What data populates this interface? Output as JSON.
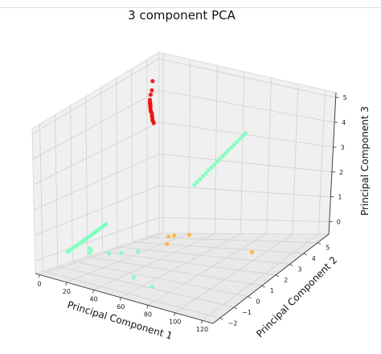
{
  "chart_data": {
    "type": "scatter",
    "projection": "3d",
    "title": "3 component PCA",
    "xlabel": "Principal Component 1",
    "ylabel": "Principal Component 2",
    "zlabel": "Principal Component 3",
    "xlim": [
      -3,
      128
    ],
    "ylim": [
      -2.5,
      5.8
    ],
    "zlim": [
      -0.5,
      5.2
    ],
    "xticks": [
      "0",
      "20",
      "40",
      "60",
      "80",
      "100",
      "120"
    ],
    "yticks": [
      "−2",
      "−1",
      "0",
      "1",
      "2",
      "3",
      "4",
      "5"
    ],
    "zticks": [
      "0",
      "1",
      "2",
      "3",
      "4",
      "5"
    ],
    "grid": true,
    "legend": "none",
    "series": [
      {
        "color": "#ee1111",
        "points": [
          [
            2,
            5.0,
            3.2
          ],
          [
            2.4,
            4.9,
            3.3
          ],
          [
            2.8,
            4.85,
            3.35
          ],
          [
            3.2,
            4.8,
            3.45
          ],
          [
            3.6,
            4.75,
            3.5
          ],
          [
            4,
            4.7,
            3.6
          ],
          [
            4.4,
            4.6,
            3.7
          ],
          [
            4.8,
            4.55,
            3.75
          ],
          [
            5.2,
            4.5,
            3.85
          ],
          [
            8,
            4.25,
            4.0
          ],
          [
            8.5,
            4.2,
            4.05
          ],
          [
            9,
            4.15,
            4.1
          ],
          [
            9.5,
            4.1,
            4.15
          ],
          [
            10,
            4.05,
            4.2
          ],
          [
            10.5,
            4.0,
            4.3
          ],
          [
            20,
            3.2,
            4.8
          ],
          [
            22,
            3.1,
            5.0
          ],
          [
            27,
            2.7,
            5.5
          ]
        ]
      },
      {
        "color": "#7fffbf",
        "points": [
          [
            0,
            -0.6,
            0.0
          ],
          [
            0.5,
            -0.5,
            0.04
          ],
          [
            1,
            -0.4,
            0.08
          ],
          [
            1.5,
            -0.3,
            0.12
          ],
          [
            2,
            -0.2,
            0.16
          ],
          [
            2.5,
            -0.1,
            0.2
          ],
          [
            3,
            0.0,
            0.24
          ],
          [
            3.5,
            0.1,
            0.28
          ],
          [
            4,
            0.2,
            0.32
          ],
          [
            4.5,
            0.3,
            0.36
          ],
          [
            5,
            0.4,
            0.4
          ],
          [
            5.5,
            0.5,
            0.44
          ],
          [
            6,
            0.6,
            0.48
          ],
          [
            6.5,
            0.7,
            0.52
          ],
          [
            7,
            0.8,
            0.56
          ],
          [
            7.5,
            0.9,
            0.6
          ],
          [
            8,
            1.0,
            0.64
          ],
          [
            8.5,
            1.1,
            0.68
          ],
          [
            9,
            1.2,
            0.72
          ],
          [
            10,
            0.0,
            0.1
          ],
          [
            11,
            0.0,
            0.05
          ],
          [
            12,
            -0.2,
            0.0
          ],
          [
            22,
            0.2,
            0.0
          ],
          [
            28,
            0.5,
            0.0
          ],
          [
            35,
            1.0,
            0.0
          ],
          [
            60,
            -1.6,
            0.0
          ],
          [
            78,
            -2.0,
            0.0
          ],
          [
            55,
            3.0,
            2.0
          ],
          [
            56,
            3.1,
            2.08
          ],
          [
            57,
            3.2,
            2.16
          ],
          [
            58,
            3.3,
            2.24
          ],
          [
            59,
            3.4,
            2.32
          ],
          [
            60,
            3.5,
            2.4
          ],
          [
            61,
            3.6,
            2.48
          ],
          [
            62,
            3.7,
            2.56
          ],
          [
            63,
            3.8,
            2.64
          ],
          [
            64,
            3.9,
            2.72
          ],
          [
            65,
            4.0,
            2.8
          ],
          [
            66,
            4.1,
            2.88
          ],
          [
            67,
            4.2,
            2.96
          ],
          [
            68,
            4.3,
            3.04
          ],
          [
            69,
            4.4,
            3.12
          ],
          [
            70,
            4.5,
            3.2
          ],
          [
            71,
            4.6,
            3.28
          ],
          [
            72,
            4.7,
            3.36
          ],
          [
            73,
            4.8,
            3.44
          ]
        ]
      },
      {
        "color": "#ffb347",
        "points": [
          [
            60,
            0.8,
            0.8
          ],
          [
            62,
            1.0,
            0.8
          ],
          [
            61,
            0.6,
            0.6
          ],
          [
            70,
            1.3,
            0.8
          ],
          [
            118,
            1.2,
            0.6
          ]
        ]
      }
    ]
  }
}
